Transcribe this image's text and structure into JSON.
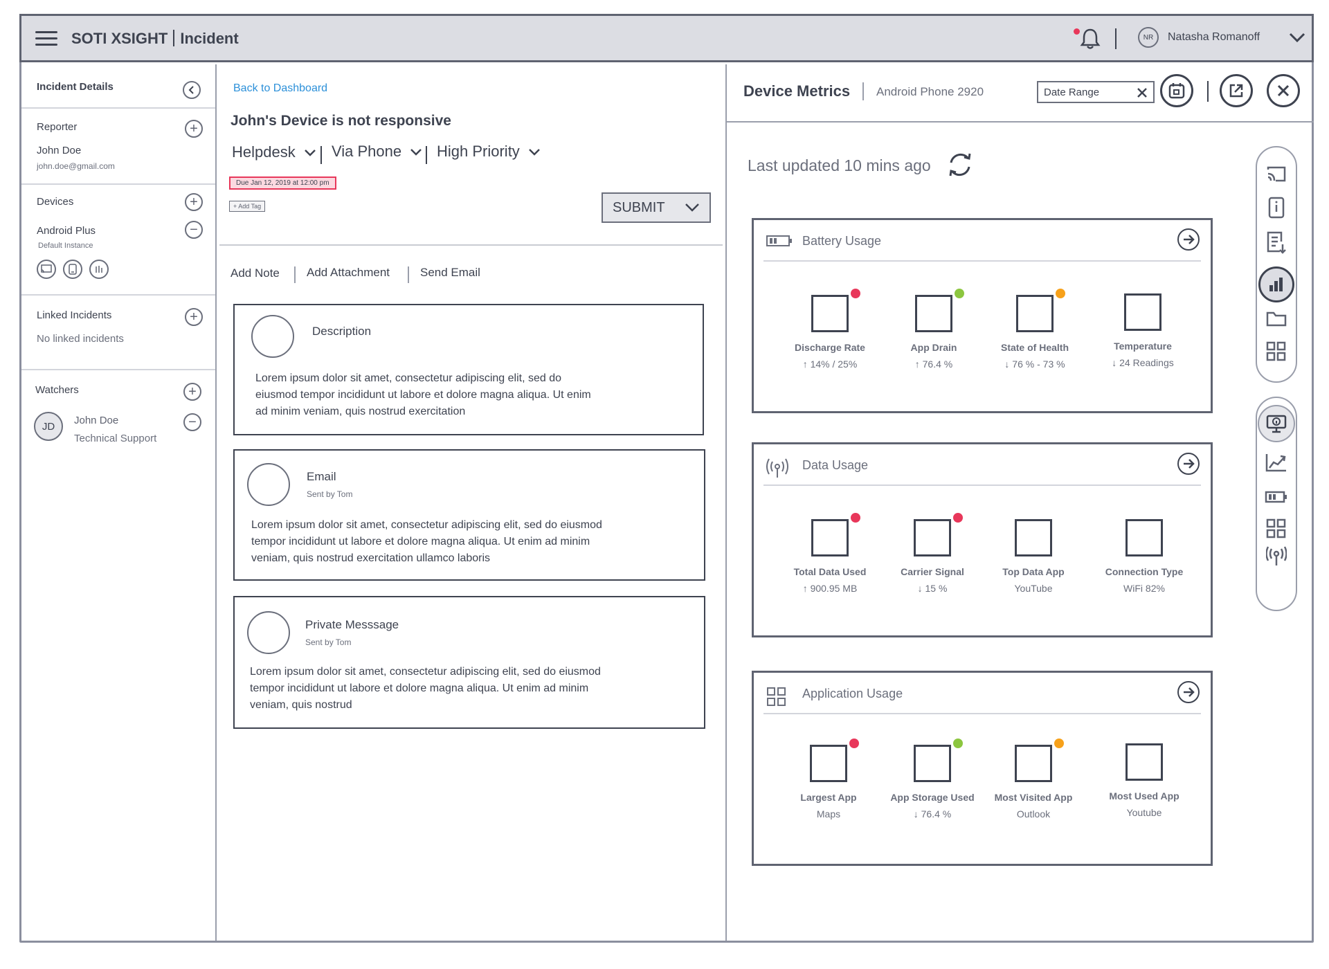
{
  "header": {
    "app_name": "SOTI XSIGHT",
    "section": "Incident",
    "user": {
      "initials": "NR",
      "name": "Natasha Romanoff"
    }
  },
  "left": {
    "title": "Incident Details",
    "reporter": {
      "label": "Reporter",
      "name": "John Doe",
      "email": "john.doe@gmail.com"
    },
    "devices": {
      "label": "Devices",
      "name": "Android Plus",
      "instance": "Default Instance"
    },
    "linked": {
      "label": "Linked Incidents",
      "empty": "No linked incidents"
    },
    "watchers": {
      "label": "Watchers",
      "initials": "JD",
      "name": "John Doe",
      "role": "Technical Support"
    }
  },
  "middle": {
    "back_link": "Back to Dashboard",
    "title": "John's Device is not responsive",
    "dropdowns": [
      "Helpdesk",
      "Via Phone",
      "High Priority"
    ],
    "due": "Due Jan 12, 2019 at 12:00 pm",
    "add_tag": "+ Add Tag",
    "submit": "SUBMIT",
    "actions": [
      "Add Note",
      "Add Attachment",
      "Send Email"
    ],
    "cards": [
      {
        "title": "Description",
        "sub": "",
        "body": "Lorem ipsum dolor sit amet, consectetur adipiscing elit, sed do eiusmod tempor incididunt ut labore et dolore magna aliqua. Ut enim ad minim veniam, quis nostrud exercitation"
      },
      {
        "title": "Email",
        "sub": "Sent by Tom",
        "body": "Lorem ipsum dolor sit amet, consectetur adipiscing elit, sed do eiusmod tempor incididunt ut labore et dolore magna aliqua. Ut enim ad minim veniam, quis nostrud exercitation ullamco laboris"
      },
      {
        "title": "Private Messsage",
        "sub": "Sent by Tom",
        "body": "Lorem ipsum dolor sit amet, consectetur adipiscing elit, sed do eiusmod tempor incididunt ut labore et dolore magna aliqua. Ut enim ad minim veniam, quis nostrud"
      }
    ]
  },
  "right": {
    "title": "Device Metrics",
    "device": "Android Phone 2920",
    "date_range": "Date Range",
    "updated": "Last updated 10 mins ago",
    "panels": [
      {
        "title": "Battery Usage",
        "metrics": [
          {
            "label": "Discharge Rate",
            "value": "↑ 14% / 25%",
            "dot": "#e8375a"
          },
          {
            "label": "App Drain",
            "value": "↑ 76.4 %",
            "dot": "#8cc63f"
          },
          {
            "label": "State of Health",
            "value": "↓ 76 % - 73 %",
            "dot": "#f7a11a"
          },
          {
            "label": "Temperature",
            "value": "↓ 24 Readings",
            "dot": ""
          }
        ]
      },
      {
        "title": "Data Usage",
        "metrics": [
          {
            "label": "Total Data Used",
            "value": "↑ 900.95 MB",
            "dot": "#e8375a"
          },
          {
            "label": "Carrier Signal",
            "value": "↓ 15 %",
            "dot": "#e8375a"
          },
          {
            "label": "Top Data App",
            "value": "YouTube",
            "dot": ""
          },
          {
            "label": "Connection Type",
            "value": "WiFi 82%",
            "dot": ""
          }
        ]
      },
      {
        "title": "Application Usage",
        "metrics": [
          {
            "label": "Largest App",
            "value": "Maps",
            "dot": "#e8375a"
          },
          {
            "label": "App Storage Used",
            "value": "↓ 76.4 %",
            "dot": "#8cc63f"
          },
          {
            "label": "Most Visited App",
            "value": "Outlook",
            "dot": "#f7a11a"
          },
          {
            "label": "Most Used App",
            "value": "Youtube",
            "dot": ""
          }
        ]
      }
    ]
  }
}
